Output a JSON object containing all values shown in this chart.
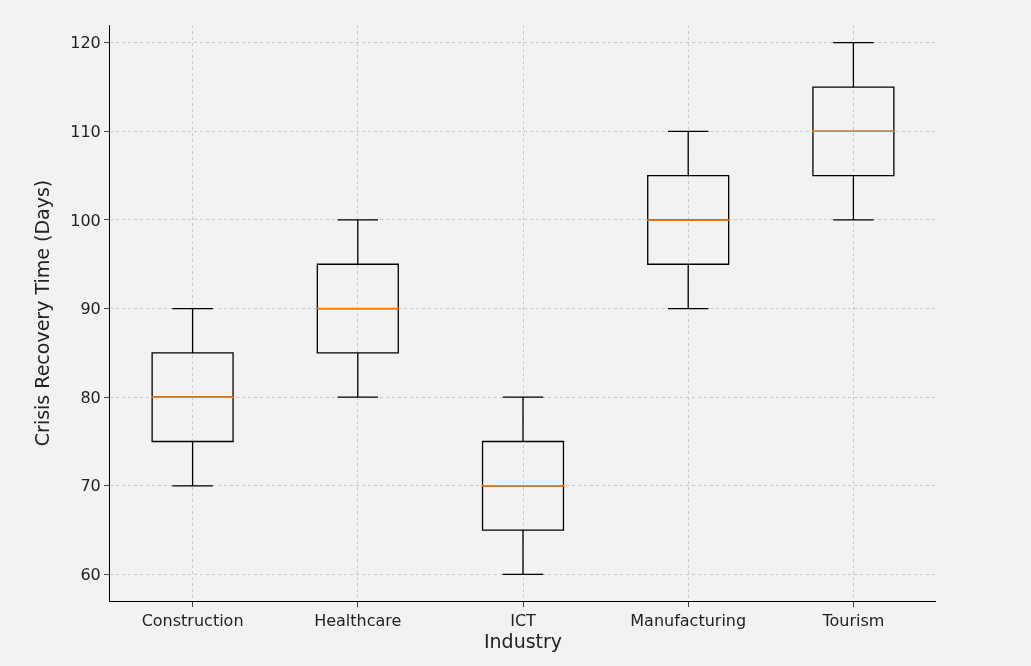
{
  "chart_data": {
    "type": "box",
    "xlabel": "Industry",
    "ylabel": "Crisis Recovery Time (Days)",
    "categories": [
      "Construction",
      "Healthcare",
      "ICT",
      "Manufacturing",
      "Tourism"
    ],
    "boxes": [
      {
        "low": 70,
        "q1": 75,
        "median": 80,
        "q3": 85,
        "high": 90
      },
      {
        "low": 80,
        "q1": 85,
        "median": 90,
        "q3": 95,
        "high": 100
      },
      {
        "low": 60,
        "q1": 65,
        "median": 70,
        "q3": 75,
        "high": 80
      },
      {
        "low": 90,
        "q1": 95,
        "median": 100,
        "q3": 105,
        "high": 110
      },
      {
        "low": 100,
        "q1": 105,
        "median": 110,
        "q3": 115,
        "high": 120
      }
    ],
    "ylim": [
      57,
      122
    ],
    "yticks": [
      60,
      70,
      80,
      90,
      100,
      110,
      120
    ],
    "grid": true
  }
}
